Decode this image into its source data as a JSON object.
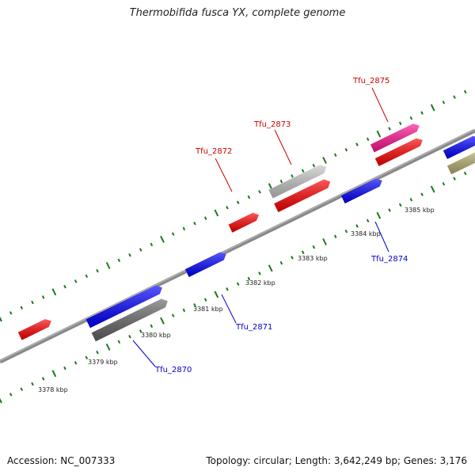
{
  "title": "Thermobifida fusca YX, complete genome",
  "footer": {
    "accession": "Accession: NC_007333",
    "summary": "Topology: circular; Length: 3,642,249 bp; Genes: 3,176"
  },
  "colors": {
    "backbone": "#7a7a7a",
    "tick": "#1a7a1a",
    "label_forward": "#cc0000",
    "label_reverse": "#0000cc"
  },
  "kbp_labels": [
    "3378 kbp",
    "3379 kbp",
    "3380 kbp",
    "3381 kbp",
    "3382 kbp",
    "3383 kbp",
    "3384 kbp",
    "3385 kbp"
  ],
  "gene_labels": [
    {
      "name": "Tfu_2870",
      "strand": "reverse"
    },
    {
      "name": "Tfu_2871",
      "strand": "reverse"
    },
    {
      "name": "Tfu_2872",
      "strand": "forward"
    },
    {
      "name": "Tfu_2873",
      "strand": "forward"
    },
    {
      "name": "Tfu_2874",
      "strand": "reverse"
    },
    {
      "name": "Tfu_2875",
      "strand": "forward"
    }
  ],
  "feature_colors": [
    "#ff0000",
    "#0000ff",
    "#666666",
    "#0000ff",
    "#ff0000",
    "#c8c8c8",
    "#ff0000",
    "#0000ff",
    "#ff1493",
    "#ff0000",
    "#0000ff",
    "#b8b070"
  ]
}
